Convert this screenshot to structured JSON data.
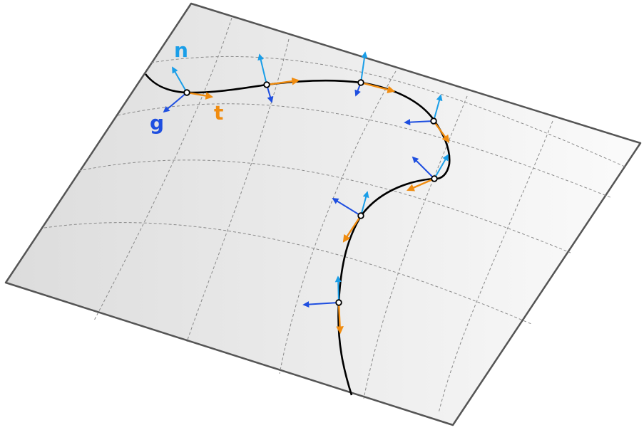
{
  "labels": {
    "normal": "n",
    "geodesic": "g",
    "tangent": "t"
  },
  "colors": {
    "normal": "#1a9ee8",
    "geodesic": "#1f4fe0",
    "tangent": "#f08c10",
    "curve": "#000000",
    "surface_edge": "#555555",
    "grid": "#8a8a8a"
  },
  "frames": [
    {
      "id": 1,
      "vectors": [
        "n",
        "g",
        "t"
      ]
    },
    {
      "id": 2,
      "vectors": [
        "n",
        "g",
        "t"
      ]
    },
    {
      "id": 3,
      "vectors": [
        "n",
        "g",
        "t"
      ]
    },
    {
      "id": 4,
      "vectors": [
        "n",
        "g",
        "t"
      ]
    },
    {
      "id": 5,
      "vectors": [
        "n",
        "g",
        "t"
      ]
    },
    {
      "id": 6,
      "vectors": [
        "n",
        "g",
        "t"
      ]
    },
    {
      "id": 7,
      "vectors": [
        "n",
        "g",
        "t"
      ]
    }
  ]
}
